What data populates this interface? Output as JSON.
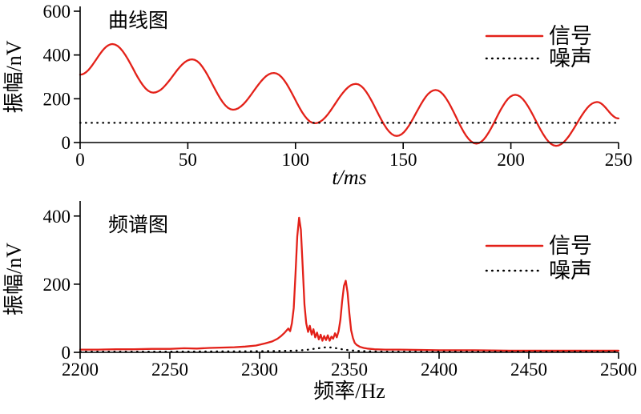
{
  "colors": {
    "signal": "#e32119",
    "noise": "#000000",
    "axis": "#000000",
    "background": "#ffffff"
  },
  "chart_data": [
    {
      "id": "time-domain",
      "type": "line",
      "title": "曲线图",
      "xlabel": "t/ms",
      "xlabel_italic": true,
      "ylabel": "振幅/nV",
      "xlim": [
        0,
        250
      ],
      "ylim": [
        0,
        600
      ],
      "xticks": [
        0,
        50,
        100,
        150,
        200,
        250
      ],
      "yticks": [
        0,
        200,
        400,
        600
      ],
      "grid": false,
      "legend_position": "top-right-inside",
      "series": [
        {
          "key": "signal",
          "name": "信号",
          "color": "#e32119",
          "dash": "solid",
          "interp": "cosine",
          "x": [
            0,
            15,
            34,
            52,
            71,
            90,
            109,
            128,
            147,
            165,
            184,
            202,
            221,
            240,
            250
          ],
          "y": [
            310,
            450,
            228,
            380,
            150,
            318,
            88,
            268,
            30,
            240,
            -5,
            218,
            -15,
            185,
            110
          ]
        },
        {
          "key": "noise",
          "name": "噪声",
          "color": "#000000",
          "dash": "dotted",
          "interp": "linear",
          "x": [
            0,
            250
          ],
          "y": [
            90,
            90
          ]
        }
      ]
    },
    {
      "id": "spectrum",
      "type": "line",
      "title": "频谱图",
      "xlabel": "频率/Hz",
      "xlabel_italic": false,
      "ylabel": "振幅/nV",
      "xlim": [
        2200,
        2500
      ],
      "ylim": [
        0,
        430
      ],
      "xticks": [
        2200,
        2250,
        2300,
        2350,
        2400,
        2450,
        2500
      ],
      "yticks": [
        0,
        200,
        400
      ],
      "grid": false,
      "legend_position": "top-right-inside",
      "series": [
        {
          "key": "signal",
          "name": "信号",
          "color": "#e32119",
          "dash": "solid",
          "interp": "linear",
          "x": [
            2200,
            2210,
            2220,
            2230,
            2240,
            2250,
            2258,
            2265,
            2272,
            2280,
            2286,
            2292,
            2298,
            2303,
            2307,
            2310,
            2312,
            2314,
            2316,
            2317,
            2318,
            2319,
            2320,
            2321,
            2322,
            2323,
            2324,
            2325,
            2326,
            2327,
            2328,
            2329,
            2330,
            2331,
            2332,
            2333,
            2334,
            2335,
            2336,
            2337,
            2338,
            2339,
            2340,
            2341,
            2342,
            2343,
            2344,
            2345,
            2346,
            2347,
            2348,
            2349,
            2350,
            2351,
            2352,
            2353,
            2354,
            2356,
            2358,
            2360,
            2364,
            2370,
            2378,
            2390,
            2400,
            2420,
            2440,
            2460,
            2480,
            2500
          ],
          "y": [
            8,
            8,
            9,
            9,
            10,
            10,
            12,
            11,
            13,
            14,
            15,
            17,
            20,
            26,
            32,
            40,
            48,
            58,
            70,
            62,
            85,
            130,
            230,
            340,
            395,
            360,
            250,
            140,
            85,
            60,
            78,
            52,
            68,
            44,
            58,
            38,
            52,
            34,
            48,
            36,
            50,
            34,
            46,
            40,
            56,
            44,
            62,
            95,
            150,
            195,
            210,
            175,
            115,
            65,
            42,
            28,
            22,
            16,
            13,
            11,
            9,
            8,
            8,
            7,
            6,
            6,
            5,
            5,
            5,
            5
          ]
        },
        {
          "key": "noise",
          "name": "噪声",
          "color": "#000000",
          "dash": "dotted",
          "interp": "linear",
          "x": [
            2200,
            2250,
            2290,
            2310,
            2320,
            2326,
            2330,
            2334,
            2337,
            2340,
            2343,
            2346,
            2350,
            2355,
            2360,
            2370,
            2400,
            2450,
            2500
          ],
          "y": [
            2,
            2,
            3,
            4,
            5,
            7,
            10,
            13,
            15,
            14,
            12,
            9,
            6,
            4,
            3,
            2,
            2,
            2,
            2
          ]
        }
      ]
    }
  ]
}
